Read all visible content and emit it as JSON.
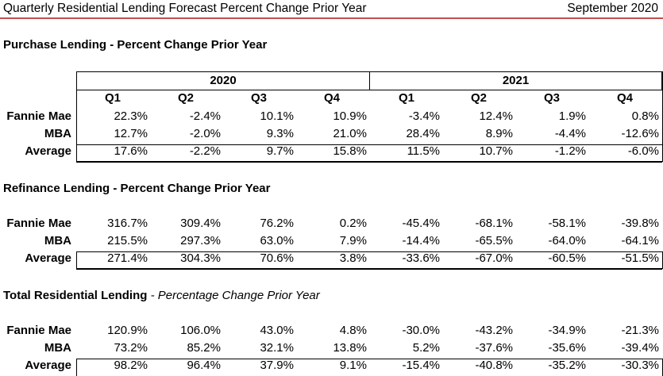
{
  "header": {
    "title": "Quarterly Residential Lending Forecast Percent Change Prior Year",
    "date": "September 2020"
  },
  "years": [
    "2020",
    "2021"
  ],
  "quarters": [
    "Q1",
    "Q2",
    "Q3",
    "Q4",
    "Q1",
    "Q2",
    "Q3",
    "Q4"
  ],
  "sections": [
    {
      "title": "Purchase Lending",
      "subtitle": " - Percent Change Prior Year",
      "rows": [
        {
          "label": "Fannie Mae",
          "values": [
            "22.3%",
            "-2.4%",
            "10.1%",
            "10.9%",
            "-3.4%",
            "12.4%",
            "1.9%",
            "0.8%"
          ]
        },
        {
          "label": "MBA",
          "values": [
            "12.7%",
            "-2.0%",
            "9.3%",
            "21.0%",
            "28.4%",
            "8.9%",
            "-4.4%",
            "-12.6%"
          ]
        },
        {
          "label": "Average",
          "values": [
            "17.6%",
            "-2.2%",
            "9.7%",
            "15.8%",
            "11.5%",
            "10.7%",
            "-1.2%",
            "-6.0%"
          ]
        }
      ]
    },
    {
      "title": "Refinance Lending",
      "subtitle": " - Percent Change Prior Year",
      "rows": [
        {
          "label": "Fannie Mae",
          "values": [
            "316.7%",
            "309.4%",
            "76.2%",
            "0.2%",
            "-45.4%",
            "-68.1%",
            "-58.1%",
            "-39.8%"
          ]
        },
        {
          "label": "MBA",
          "values": [
            "215.5%",
            "297.3%",
            "63.0%",
            "7.9%",
            "-14.4%",
            "-65.5%",
            "-64.0%",
            "-64.1%"
          ]
        },
        {
          "label": "Average",
          "values": [
            "271.4%",
            "304.3%",
            "70.6%",
            "3.8%",
            "-33.6%",
            "-67.0%",
            "-60.5%",
            "-51.5%"
          ]
        }
      ]
    },
    {
      "title": "Total Residential Lending",
      "subtitle": " - Percentage Change Prior Year",
      "rows": [
        {
          "label": "Fannie Mae",
          "values": [
            "120.9%",
            "106.0%",
            "43.0%",
            "4.8%",
            "-30.0%",
            "-43.2%",
            "-34.9%",
            "-21.3%"
          ]
        },
        {
          "label": "MBA",
          "values": [
            "73.2%",
            "85.2%",
            "32.1%",
            "13.8%",
            "5.2%",
            "-37.6%",
            "-35.6%",
            "-39.4%"
          ]
        },
        {
          "label": "Average",
          "values": [
            "98.2%",
            "96.4%",
            "37.9%",
            "9.1%",
            "-15.4%",
            "-40.8%",
            "-35.2%",
            "-30.3%"
          ]
        }
      ]
    }
  ]
}
